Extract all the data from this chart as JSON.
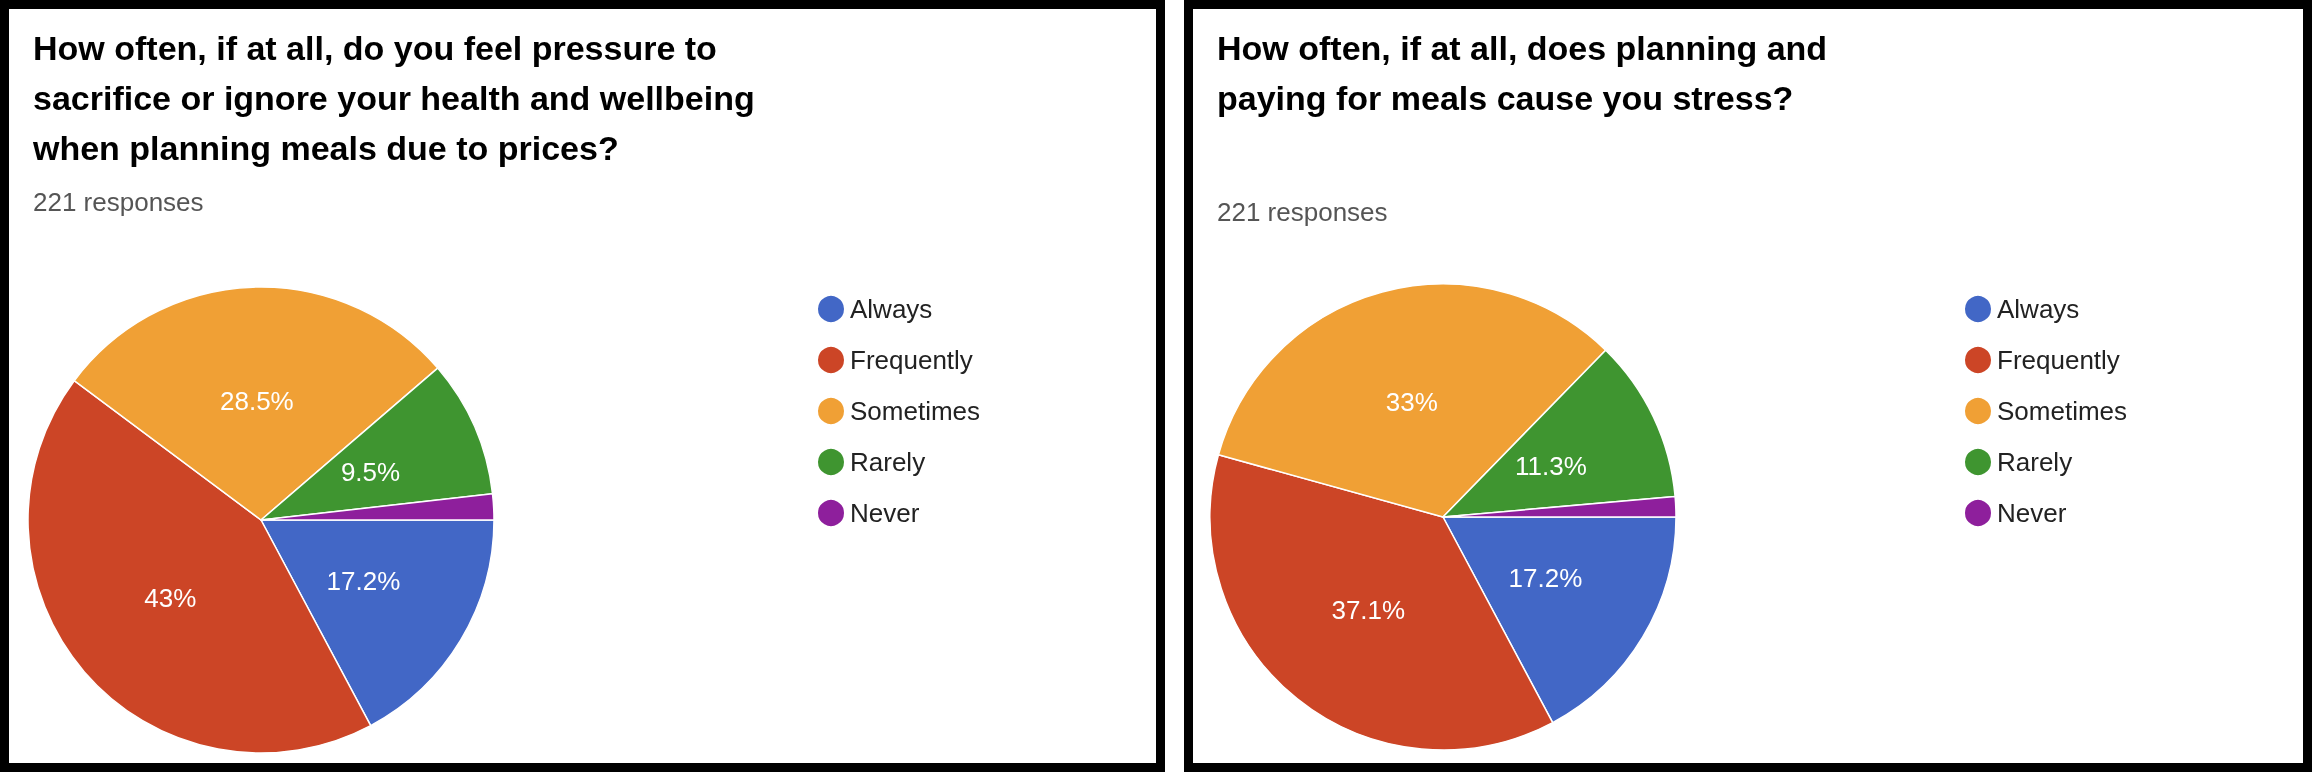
{
  "chart_data": [
    {
      "type": "pie",
      "title": "How often, if at all, do you feel pressure to sacrifice or ignore your health and wellbeing when planning meals due to prices?",
      "subtitle": "221 responses",
      "categories": [
        "Always",
        "Frequently",
        "Sometimes",
        "Rarely",
        "Never"
      ],
      "values": [
        17.2,
        43,
        28.5,
        9.5,
        1.8
      ],
      "colors": [
        "#4267c6",
        "#cc4526",
        "#f0a035",
        "#3f9530",
        "#8e1f9c"
      ],
      "value_labels": [
        "17.2%",
        "43%",
        "28.5%",
        "9.5%",
        null
      ],
      "legend": "right"
    },
    {
      "type": "pie",
      "title": "How often, if at all, does planning and paying for meals cause you stress?",
      "subtitle": "221 responses",
      "categories": [
        "Always",
        "Frequently",
        "Sometimes",
        "Rarely",
        "Never"
      ],
      "values": [
        17.2,
        37.1,
        33,
        11.3,
        1.4
      ],
      "colors": [
        "#4267c6",
        "#cc4526",
        "#f0a035",
        "#3f9530",
        "#8e1f9c"
      ],
      "value_labels": [
        "17.2%",
        "37.1%",
        "33%",
        "11.3%",
        null
      ],
      "legend": "right"
    }
  ]
}
